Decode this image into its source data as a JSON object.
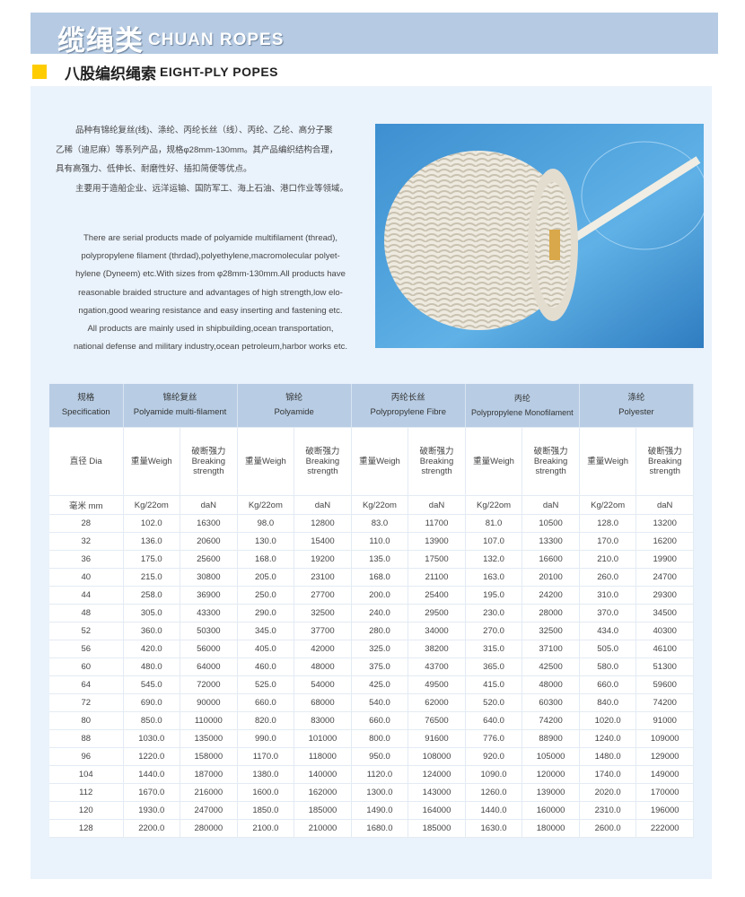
{
  "banner": {
    "title_cn": "缆绳类",
    "title_en": "CHUAN ROPES"
  },
  "section": {
    "title_cn": "八股编织绳索",
    "title_en": "EIGHT-PLY POPES",
    "marker_color": "#ffcc00"
  },
  "description_cn": [
    "品种有锦纶复丝(线)、涤纶、丙纶长丝（线）、丙纶、乙纶、高分子聚",
    "乙稀（迪尼麻）等系列产品，规格φ28mm-130mm。其产品编织结构合理，",
    "具有高强力、低伸长、耐磨性好、插扣简便等优点。",
    "主要用于造船企业、远洋运输、国防军工、海上石油、港口作业等领域。"
  ],
  "description_en": [
    "There are serial products made of polyamide multifilament (thread),",
    "polypropylene filament (thrdad),polyethylene,macromolecular polyet-",
    "hylene (Dyneem) etc.With sizes from φ28mm-130mm.All products have",
    "reasonable braided structure and advantages of high strength,low elo-",
    "ngation,good wearing resistance and easy  inserting and fastening etc.",
    "All products are mainly used in shipbuilding,ocean transportation,",
    "national defense and military industry,ocean petroleum,harbor works etc."
  ],
  "photo": {
    "subject": "eight-ply braided rope coil"
  },
  "table": {
    "spec_header": {
      "cn": "规格",
      "en": "Specification"
    },
    "materials": [
      {
        "cn": "锦纶复丝",
        "en": "Polyamide multi-filament"
      },
      {
        "cn": "锦纶",
        "en": "Polyamide"
      },
      {
        "cn": "丙纶长丝",
        "en": "Polypropylene Fibre"
      },
      {
        "cn": "丙纶",
        "en": "Polypropylene Monofilament"
      },
      {
        "cn": "涤纶",
        "en": "Polyester"
      }
    ],
    "dia_label": "直径 Dia",
    "weight_label": "重量Weigh",
    "strength_label_cn": "破断强力",
    "strength_label_en1": "Breaking",
    "strength_label_en2": "strength",
    "unit_dia": "毫米 mm",
    "unit_weight": "Kg/22om",
    "unit_strength": "daN",
    "rows": [
      [
        "28",
        "102.0",
        "16300",
        "98.0",
        "12800",
        "83.0",
        "11700",
        "81.0",
        "10500",
        "128.0",
        "13200"
      ],
      [
        "32",
        "136.0",
        "20600",
        "130.0",
        "15400",
        "110.0",
        "13900",
        "107.0",
        "13300",
        "170.0",
        "16200"
      ],
      [
        "36",
        "175.0",
        "25600",
        "168.0",
        "19200",
        "135.0",
        "17500",
        "132.0",
        "16600",
        "210.0",
        "19900"
      ],
      [
        "40",
        "215.0",
        "30800",
        "205.0",
        "23100",
        "168.0",
        "21100",
        "163.0",
        "20100",
        "260.0",
        "24700"
      ],
      [
        "44",
        "258.0",
        "36900",
        "250.0",
        "27700",
        "200.0",
        "25400",
        "195.0",
        "24200",
        "310.0",
        "29300"
      ],
      [
        "48",
        "305.0",
        "43300",
        "290.0",
        "32500",
        "240.0",
        "29500",
        "230.0",
        "28000",
        "370.0",
        "34500"
      ],
      [
        "52",
        "360.0",
        "50300",
        "345.0",
        "37700",
        "280.0",
        "34000",
        "270.0",
        "32500",
        "434.0",
        "40300"
      ],
      [
        "56",
        "420.0",
        "56000",
        "405.0",
        "42000",
        "325.0",
        "38200",
        "315.0",
        "37100",
        "505.0",
        "46100"
      ],
      [
        "60",
        "480.0",
        "64000",
        "460.0",
        "48000",
        "375.0",
        "43700",
        "365.0",
        "42500",
        "580.0",
        "51300"
      ],
      [
        "64",
        "545.0",
        "72000",
        "525.0",
        "54000",
        "425.0",
        "49500",
        "415.0",
        "48000",
        "660.0",
        "59600"
      ],
      [
        "72",
        "690.0",
        "90000",
        "660.0",
        "68000",
        "540.0",
        "62000",
        "520.0",
        "60300",
        "840.0",
        "74200"
      ],
      [
        "80",
        "850.0",
        "110000",
        "820.0",
        "83000",
        "660.0",
        "76500",
        "640.0",
        "74200",
        "1020.0",
        "91000"
      ],
      [
        "88",
        "1030.0",
        "135000",
        "990.0",
        "101000",
        "800.0",
        "91600",
        "776.0",
        "88900",
        "1240.0",
        "109000"
      ],
      [
        "96",
        "1220.0",
        "158000",
        "1170.0",
        "118000",
        "950.0",
        "108000",
        "920.0",
        "105000",
        "1480.0",
        "129000"
      ],
      [
        "104",
        "1440.0",
        "187000",
        "1380.0",
        "140000",
        "1120.0",
        "124000",
        "1090.0",
        "120000",
        "1740.0",
        "149000"
      ],
      [
        "112",
        "1670.0",
        "216000",
        "1600.0",
        "162000",
        "1300.0",
        "143000",
        "1260.0",
        "139000",
        "2020.0",
        "170000"
      ],
      [
        "120",
        "1930.0",
        "247000",
        "1850.0",
        "185000",
        "1490.0",
        "164000",
        "1440.0",
        "160000",
        "2310.0",
        "196000"
      ],
      [
        "128",
        "2200.0",
        "280000",
        "2100.0",
        "210000",
        "1680.0",
        "185000",
        "1630.0",
        "180000",
        "2600.0",
        "222000"
      ]
    ]
  }
}
